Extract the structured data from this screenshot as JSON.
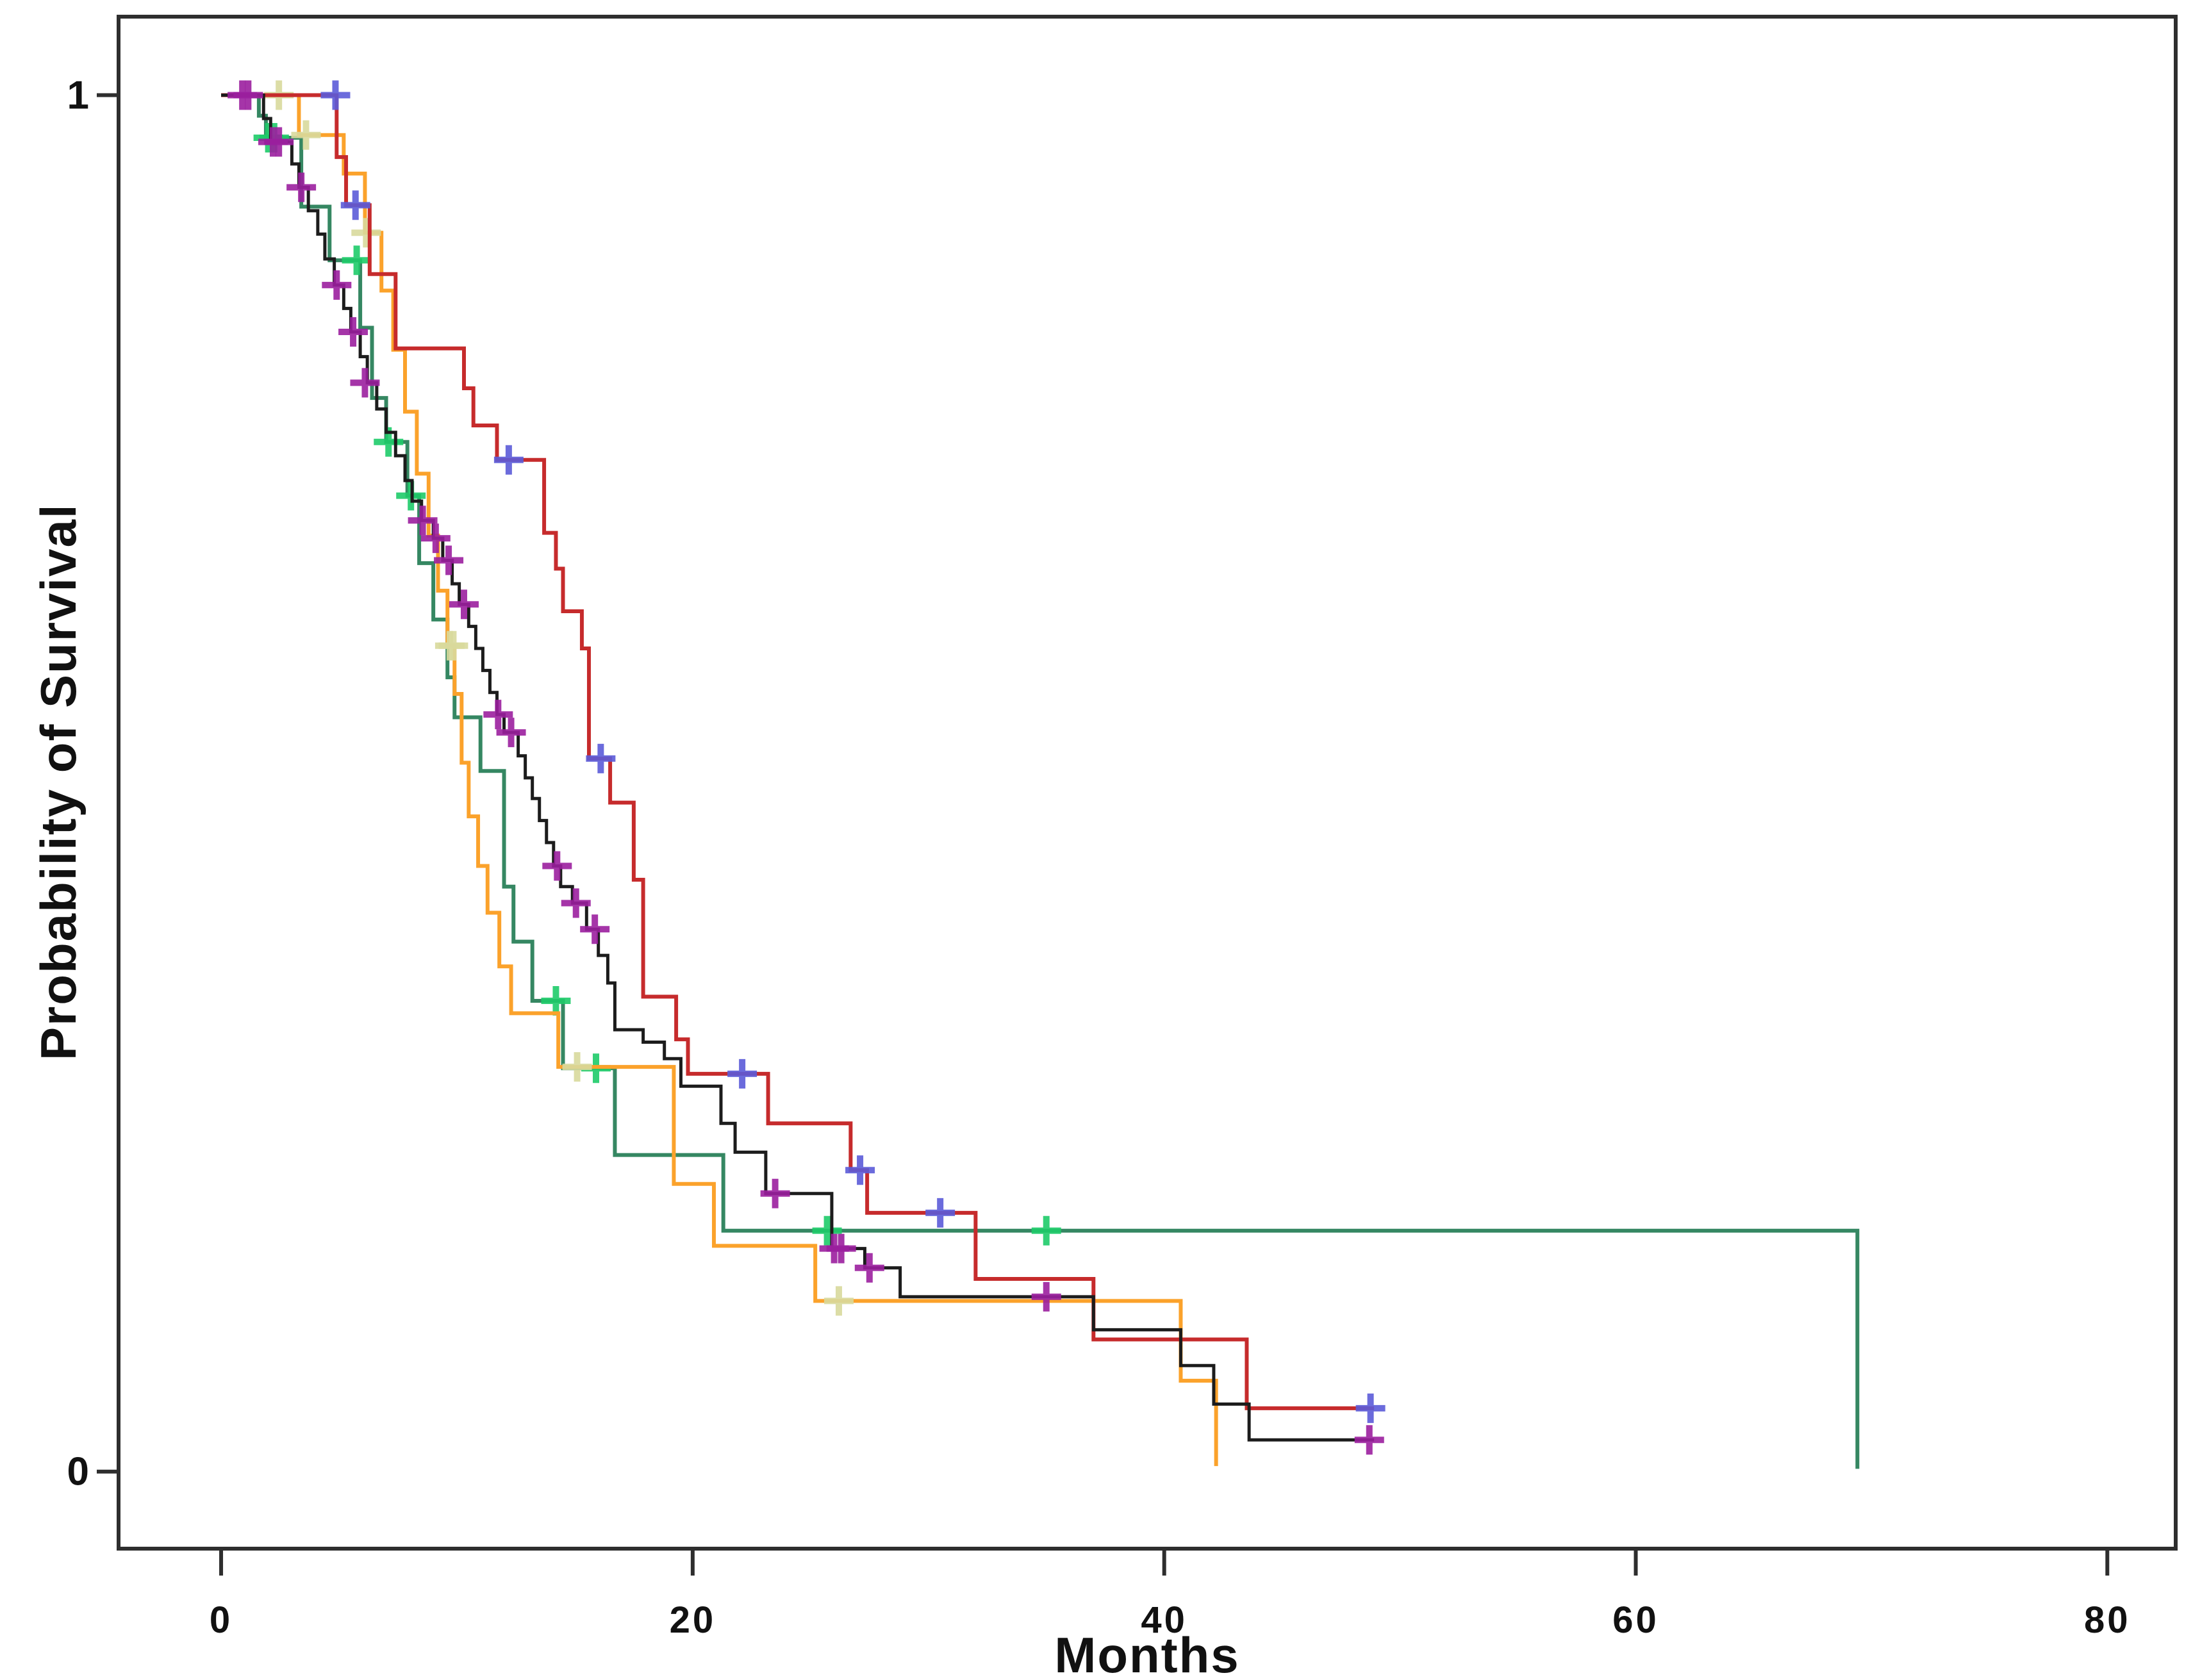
{
  "chart_data": {
    "type": "line",
    "subtype": "kaplan-meier-step-plot",
    "title": "",
    "xlabel": "Months",
    "ylabel": "Probability of Survival",
    "xlim": [
      -4.35,
      82.9
    ],
    "ylim": [
      -0.056,
      1.057
    ],
    "xticks": {
      "values": [
        0,
        20,
        40,
        60,
        80
      ],
      "labels": [
        "0",
        "20",
        "40",
        "60",
        "80"
      ]
    },
    "yticks": {
      "values": [
        1,
        0
      ],
      "labels": [
        "1",
        "0"
      ]
    },
    "grid": false,
    "legend": null,
    "frame_color": "#2e2e2e",
    "tick_label_color": "#111111",
    "series": [
      {
        "name": "cohort-green",
        "color": "#358762",
        "censor_color": "#1ecb69",
        "line_width": 6,
        "start": [
          0,
          1
        ],
        "steps": [
          [
            1.6,
            0.985
          ],
          [
            1.9,
            0.969
          ],
          [
            3.4,
            0.919
          ],
          [
            4.6,
            0.88
          ],
          [
            5.9,
            0.831
          ],
          [
            6.4,
            0.78
          ],
          [
            7.0,
            0.748
          ],
          [
            7.9,
            0.709
          ],
          [
            8.4,
            0.66
          ],
          [
            9.0,
            0.619
          ],
          [
            9.6,
            0.577
          ],
          [
            9.9,
            0.548
          ],
          [
            11.0,
            0.509
          ],
          [
            12.0,
            0.425
          ],
          [
            12.4,
            0.385
          ],
          [
            13.2,
            0.342
          ],
          [
            14.5,
            0.293
          ],
          [
            16.7,
            0.23
          ],
          [
            21.3,
            0.175
          ],
          [
            69.4,
            0.002
          ]
        ],
        "end_month": 69.4,
        "censors": [
          [
            2.0,
            0.969
          ],
          [
            2.25,
            0.969
          ],
          [
            5.75,
            0.88
          ],
          [
            7.1,
            0.748
          ],
          [
            8.05,
            0.709
          ],
          [
            14.2,
            0.342
          ],
          [
            15.9,
            0.293
          ],
          [
            25.7,
            0.175
          ],
          [
            35.0,
            0.175
          ]
        ]
      },
      {
        "name": "cohort-orange",
        "color": "#fba22b",
        "censor_color": "#d8d99c",
        "line_width": 6,
        "start": [
          0,
          1
        ],
        "steps": [
          [
            3.3,
            0.971
          ],
          [
            5.2,
            0.943
          ],
          [
            6.1,
            0.9
          ],
          [
            6.8,
            0.858
          ],
          [
            7.3,
            0.815
          ],
          [
            7.8,
            0.77
          ],
          [
            8.3,
            0.725
          ],
          [
            8.8,
            0.68
          ],
          [
            9.2,
            0.64
          ],
          [
            9.6,
            0.6
          ],
          [
            9.9,
            0.565
          ],
          [
            10.2,
            0.515
          ],
          [
            10.5,
            0.476
          ],
          [
            10.9,
            0.44
          ],
          [
            11.3,
            0.406
          ],
          [
            11.8,
            0.367
          ],
          [
            12.3,
            0.333
          ],
          [
            14.3,
            0.294
          ],
          [
            19.2,
            0.209
          ],
          [
            20.9,
            0.164
          ],
          [
            25.2,
            0.124
          ],
          [
            40.7,
            0.066
          ],
          [
            42.2,
            0.004
          ]
        ],
        "end_month": 42.2,
        "censors": [
          [
            2.45,
            1
          ],
          [
            3.6,
            0.971
          ],
          [
            6.15,
            0.9
          ],
          [
            9.7,
            0.6
          ],
          [
            9.85,
            0.6
          ],
          [
            15.1,
            0.294
          ],
          [
            26.2,
            0.124
          ]
        ]
      },
      {
        "name": "cohort-red",
        "color": "#c62b2c",
        "censor_color": "#5b5bd8",
        "line_width": 6,
        "start": [
          0,
          1
        ],
        "steps": [
          [
            4.9,
            0.955
          ],
          [
            5.3,
            0.92
          ],
          [
            6.3,
            0.87
          ],
          [
            7.4,
            0.816
          ],
          [
            10.3,
            0.787
          ],
          [
            10.7,
            0.76
          ],
          [
            11.7,
            0.735
          ],
          [
            13.7,
            0.682
          ],
          [
            14.2,
            0.656
          ],
          [
            14.5,
            0.625
          ],
          [
            15.3,
            0.598
          ],
          [
            15.6,
            0.518
          ],
          [
            16.5,
            0.486
          ],
          [
            17.5,
            0.43
          ],
          [
            17.9,
            0.345
          ],
          [
            19.3,
            0.314
          ],
          [
            19.8,
            0.289
          ],
          [
            23.2,
            0.253
          ],
          [
            26.7,
            0.219
          ],
          [
            27.4,
            0.188
          ],
          [
            32.0,
            0.14
          ],
          [
            37.0,
            0.096
          ],
          [
            43.5,
            0.046
          ]
        ],
        "end_month": 48.9,
        "censors": [
          [
            4.85,
            1
          ],
          [
            5.7,
            0.92
          ],
          [
            12.2,
            0.735
          ],
          [
            16.1,
            0.518
          ],
          [
            22.1,
            0.289
          ],
          [
            27.1,
            0.219
          ],
          [
            30.5,
            0.188
          ],
          [
            48.75,
            0.046
          ]
        ]
      },
      {
        "name": "cohort-black",
        "color": "#1c1c1c",
        "censor_color": "#9b1f9f",
        "line_width": 5,
        "start": [
          0,
          1
        ],
        "steps": [
          [
            1.8,
            0.983
          ],
          [
            2.1,
            0.966
          ],
          [
            3.0,
            0.95
          ],
          [
            3.3,
            0.933
          ],
          [
            3.7,
            0.916
          ],
          [
            4.1,
            0.899
          ],
          [
            4.4,
            0.881
          ],
          [
            4.8,
            0.862
          ],
          [
            5.2,
            0.845
          ],
          [
            5.5,
            0.828
          ],
          [
            5.9,
            0.81
          ],
          [
            6.2,
            0.791
          ],
          [
            6.6,
            0.772
          ],
          [
            7.0,
            0.755
          ],
          [
            7.4,
            0.738
          ],
          [
            7.8,
            0.72
          ],
          [
            8.1,
            0.705
          ],
          [
            8.5,
            0.691
          ],
          [
            9.0,
            0.678
          ],
          [
            9.4,
            0.662
          ],
          [
            9.8,
            0.645
          ],
          [
            10.1,
            0.63
          ],
          [
            10.5,
            0.614
          ],
          [
            10.8,
            0.598
          ],
          [
            11.1,
            0.582
          ],
          [
            11.4,
            0.566
          ],
          [
            11.7,
            0.55
          ],
          [
            12.0,
            0.537
          ],
          [
            12.6,
            0.52
          ],
          [
            12.9,
            0.504
          ],
          [
            13.2,
            0.489
          ],
          [
            13.5,
            0.473
          ],
          [
            13.8,
            0.457
          ],
          [
            14.1,
            0.44
          ],
          [
            14.4,
            0.425
          ],
          [
            14.9,
            0.413
          ],
          [
            15.5,
            0.394
          ],
          [
            16.0,
            0.375
          ],
          [
            16.4,
            0.355
          ],
          [
            16.7,
            0.321
          ],
          [
            17.9,
            0.312
          ],
          [
            18.8,
            0.3
          ],
          [
            19.5,
            0.28
          ],
          [
            21.2,
            0.253
          ],
          [
            21.8,
            0.232
          ],
          [
            23.1,
            0.202
          ],
          [
            25.9,
            0.162
          ],
          [
            27.3,
            0.148
          ],
          [
            28.8,
            0.127
          ],
          [
            37.0,
            0.103
          ],
          [
            40.7,
            0.077
          ],
          [
            42.1,
            0.049
          ],
          [
            43.6,
            0.023
          ]
        ],
        "end_month": 48.9,
        "censors": [
          [
            0.9,
            1
          ],
          [
            1.15,
            1
          ],
          [
            2.2,
            0.966
          ],
          [
            2.45,
            0.966
          ],
          [
            3.4,
            0.933
          ],
          [
            4.9,
            0.862
          ],
          [
            5.6,
            0.828
          ],
          [
            6.1,
            0.791
          ],
          [
            8.55,
            0.691
          ],
          [
            9.1,
            0.678
          ],
          [
            9.65,
            0.662
          ],
          [
            10.3,
            0.63
          ],
          [
            11.75,
            0.55
          ],
          [
            12.3,
            0.537
          ],
          [
            14.25,
            0.44
          ],
          [
            15.05,
            0.413
          ],
          [
            15.85,
            0.394
          ],
          [
            23.5,
            0.202
          ],
          [
            26.0,
            0.162
          ],
          [
            26.3,
            0.162
          ],
          [
            27.5,
            0.148
          ],
          [
            35.0,
            0.127
          ],
          [
            48.7,
            0.023
          ]
        ]
      }
    ]
  }
}
